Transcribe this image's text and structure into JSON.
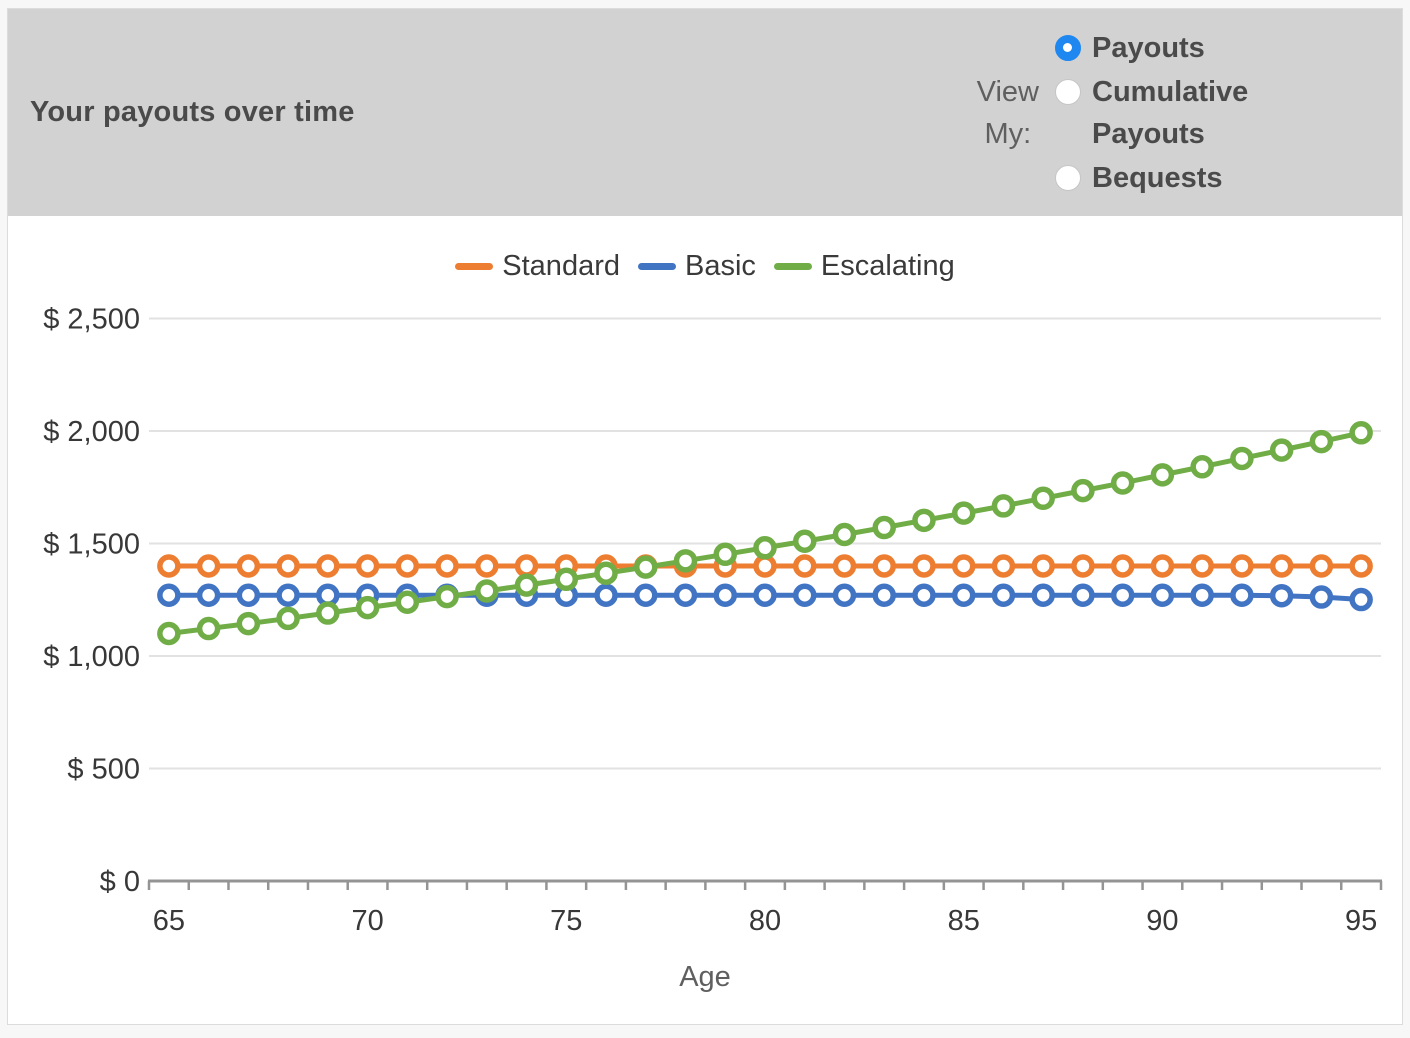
{
  "panel": {
    "title": "Your payouts over time",
    "view_my": {
      "label_lines": [
        "View",
        "My:"
      ],
      "options": [
        {
          "id": "payouts",
          "label": "Payouts",
          "selected": true
        },
        {
          "id": "cumulative-payouts",
          "label": "Cumulative Payouts",
          "selected": false
        },
        {
          "id": "bequests",
          "label": "Bequests",
          "selected": false
        }
      ]
    }
  },
  "colors": {
    "header_bg": "#d2d2d2",
    "radio_selected_blue": "#1f87f0",
    "grid_line": "#e2e2e2",
    "axis_line": "#949494",
    "tick_text": "#383838",
    "secondary_text": "#5f5f5f",
    "title_text": "#4a4a4a"
  },
  "chart_data": {
    "type": "line",
    "title": "Your payouts over time",
    "xlabel": "Age",
    "ylabel": "",
    "x": [
      65,
      66,
      67,
      68,
      69,
      70,
      71,
      72,
      73,
      74,
      75,
      76,
      77,
      78,
      79,
      80,
      81,
      82,
      83,
      84,
      85,
      86,
      87,
      88,
      89,
      90,
      91,
      92,
      93,
      94,
      95
    ],
    "x_tick_labels": [
      "65",
      "70",
      "75",
      "80",
      "85",
      "90",
      "95"
    ],
    "x_tick_ages": [
      65,
      70,
      75,
      80,
      85,
      90,
      95
    ],
    "ylim": [
      0,
      2500
    ],
    "y_ticks": [
      0,
      500,
      1000,
      1500,
      2000,
      2500
    ],
    "y_tick_labels": [
      "$ 0",
      "$ 500",
      "$ 1,000",
      "$ 1,500",
      "$ 2,000",
      "$ 2,500"
    ],
    "grid": "horizontal",
    "legend_position": "top-center",
    "marker": "open-circle",
    "series": [
      {
        "name": "Standard",
        "color": "#ed7d31",
        "values": [
          1400,
          1400,
          1400,
          1400,
          1400,
          1400,
          1400,
          1400,
          1400,
          1400,
          1400,
          1400,
          1400,
          1400,
          1400,
          1400,
          1400,
          1400,
          1400,
          1400,
          1400,
          1400,
          1400,
          1400,
          1400,
          1400,
          1400,
          1400,
          1400,
          1400,
          1400
        ]
      },
      {
        "name": "Basic",
        "color": "#4274c4",
        "values": [
          1270,
          1270,
          1270,
          1270,
          1270,
          1270,
          1270,
          1270,
          1270,
          1270,
          1270,
          1270,
          1270,
          1270,
          1270,
          1270,
          1270,
          1270,
          1270,
          1270,
          1270,
          1270,
          1270,
          1270,
          1270,
          1270,
          1270,
          1270,
          1268,
          1262,
          1251
        ]
      },
      {
        "name": "Escalating",
        "color": "#70ad47",
        "values": [
          1100,
          1122,
          1144,
          1167,
          1191,
          1215,
          1239,
          1264,
          1289,
          1315,
          1341,
          1368,
          1395,
          1423,
          1452,
          1481,
          1510,
          1540,
          1571,
          1603,
          1635,
          1667,
          1701,
          1735,
          1769,
          1805,
          1841,
          1878,
          1915,
          1953,
          1992
        ]
      }
    ]
  }
}
